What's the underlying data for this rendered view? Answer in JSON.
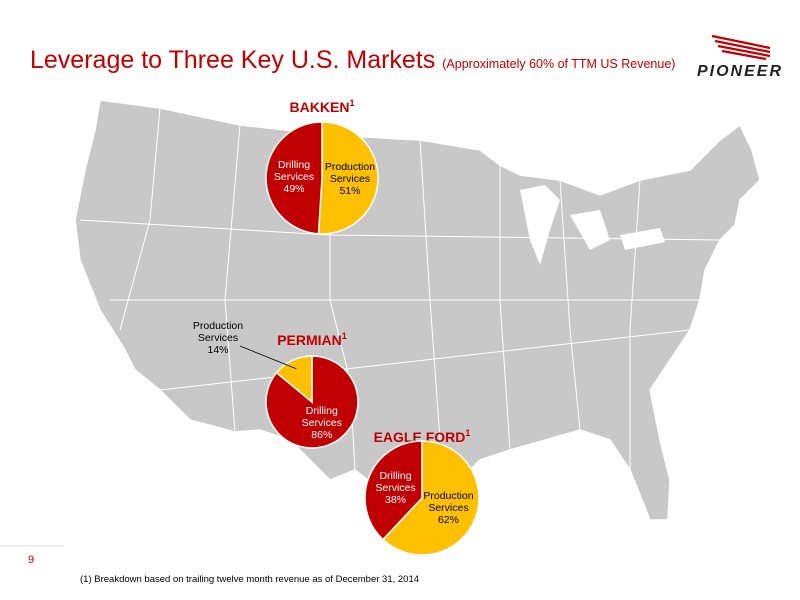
{
  "header": {
    "title": "Leverage to Three Key U.S. Markets",
    "subtitle": "(Approximately 60% of TTM US Revenue)",
    "logo": "PIONEER"
  },
  "chart_data": [
    {
      "type": "pie",
      "title": "BAKKEN",
      "footnote_ref": "1",
      "categories": [
        "Production Services",
        "Drilling Services"
      ],
      "values": [
        51,
        49
      ],
      "value_labels": [
        "51%",
        "49%"
      ],
      "colors": [
        "#ffc000",
        "#c00000"
      ]
    },
    {
      "type": "pie",
      "title": "PERMIAN",
      "footnote_ref": "1",
      "categories": [
        "Drilling Services",
        "Production Services"
      ],
      "values": [
        86,
        14
      ],
      "value_labels": [
        "86%",
        "14%"
      ],
      "colors": [
        "#c00000",
        "#ffc000"
      ]
    },
    {
      "type": "pie",
      "title": "EAGLE FORD",
      "footnote_ref": "1",
      "categories": [
        "Production Services",
        "Drilling Services"
      ],
      "values": [
        62,
        38
      ],
      "value_labels": [
        "62%",
        "38%"
      ],
      "colors": [
        "#ffc000",
        "#c00000"
      ]
    }
  ],
  "footnote": "(1)  Breakdown based on trailing twelve month revenue as of December 31, 2014",
  "page_number": "9"
}
